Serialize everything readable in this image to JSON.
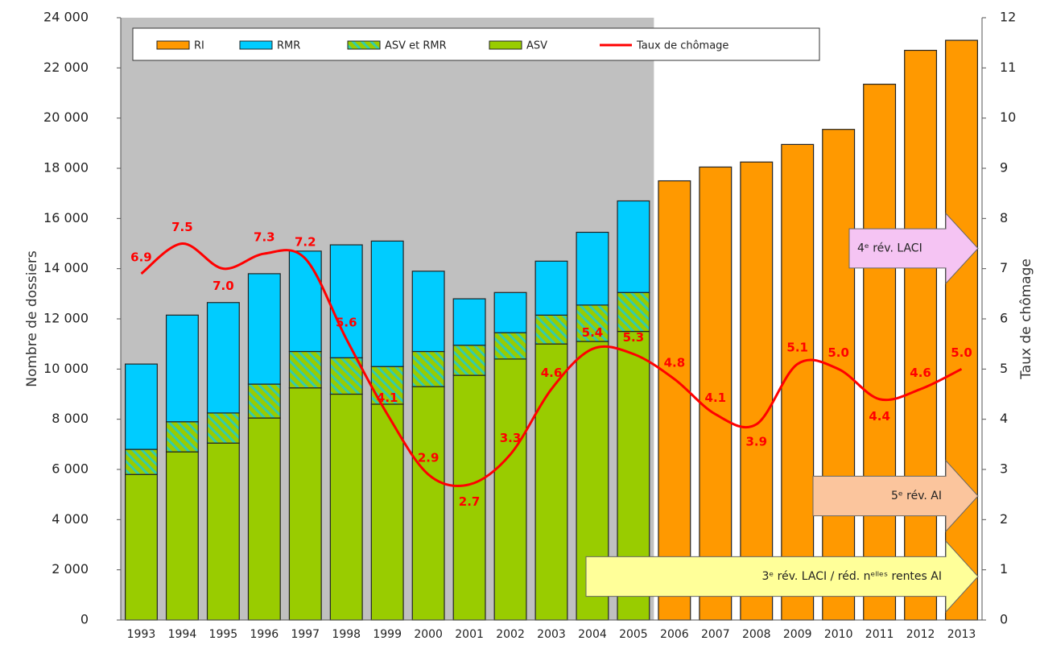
{
  "chart_data": {
    "type": "bar",
    "categories": [
      "1993",
      "1994",
      "1995",
      "1996",
      "1997",
      "1998",
      "1999",
      "2000",
      "2001",
      "2002",
      "2003",
      "2004",
      "2005",
      "2006",
      "2007",
      "2008",
      "2009",
      "2010",
      "2011",
      "2012",
      "2013"
    ],
    "y_label": "Nombre de dossiers",
    "y2_label": "Taux de chômage",
    "series": [
      {
        "name": "RI",
        "color": "#ff9900",
        "values": [
          null,
          null,
          null,
          null,
          null,
          null,
          null,
          null,
          null,
          null,
          null,
          null,
          null,
          17500,
          18050,
          18250,
          18950,
          19550,
          21350,
          22700,
          23100
        ]
      },
      {
        "name": "RMR",
        "color": "#00ccff",
        "values": [
          3400,
          4250,
          4400,
          4400,
          4000,
          4500,
          5000,
          3200,
          1850,
          1600,
          2150,
          2900,
          3650,
          null,
          null,
          null,
          null,
          null,
          null,
          null,
          null
        ]
      },
      {
        "name": "ASV et RMR",
        "color": "#99cc00",
        "hatch_color": "#33ccaa",
        "values": [
          1000,
          1200,
          1200,
          1350,
          1450,
          1450,
          1500,
          1400,
          1200,
          1050,
          1150,
          1450,
          1550,
          null,
          null,
          null,
          null,
          null,
          null,
          null,
          null
        ]
      },
      {
        "name": "ASV",
        "color": "#99cc00",
        "values": [
          5800,
          6700,
          7050,
          8050,
          9250,
          9000,
          8600,
          9300,
          9750,
          10400,
          11000,
          11100,
          11500,
          null,
          null,
          null,
          null,
          null,
          null,
          null,
          null
        ]
      },
      {
        "name": "Taux de chômage",
        "type": "line",
        "axis": "y2",
        "color": "#ff0000",
        "values": [
          6.9,
          7.5,
          7.0,
          7.3,
          7.2,
          5.6,
          4.1,
          2.9,
          2.7,
          3.3,
          4.6,
          5.4,
          5.3,
          4.8,
          4.1,
          3.9,
          5.1,
          5.0,
          4.4,
          4.6,
          5.0
        ],
        "value_labels": [
          "6.9",
          "7.5",
          "7.0",
          "7.3",
          "7.2",
          "5.6",
          "4.1",
          "2.9",
          "2.7",
          "3.3",
          "4.6",
          "5.4",
          "5.3",
          "4.8",
          "4.1",
          "3.9",
          "5.1",
          "5.0",
          "4.4",
          "4.6",
          "5.0"
        ]
      }
    ],
    "ylim": [
      0,
      24000
    ],
    "yticks": [
      0,
      {
        "value": 2000,
        "label": "2 000"
      },
      {
        "value": 4000,
        "label": "4 000"
      },
      {
        "value": 6000,
        "label": "6 000"
      },
      {
        "value": 8000,
        "label": "8 000"
      },
      {
        "value": 10000,
        "label": "10 000"
      },
      {
        "value": 12000,
        "label": "12 000"
      },
      {
        "value": 14000,
        "label": "14 000"
      },
      {
        "value": 16000,
        "label": "16 000"
      },
      {
        "value": 18000,
        "label": "18 000"
      },
      {
        "value": 20000,
        "label": "20 000"
      },
      {
        "value": 22000,
        "label": "22 000"
      },
      {
        "value": 24000,
        "label": "24 000"
      }
    ],
    "y2lim": [
      0,
      12
    ],
    "y2ticks": [
      0,
      1,
      2,
      3,
      4,
      5,
      6,
      7,
      8,
      9,
      10,
      11,
      12
    ],
    "annotations": [
      "4ᵉ rév. LACI",
      "5ᵉ rév. AI",
      "3ᵉ rév. LACI / réd. nᵉˡˡᵉˢ rentes AI"
    ]
  }
}
